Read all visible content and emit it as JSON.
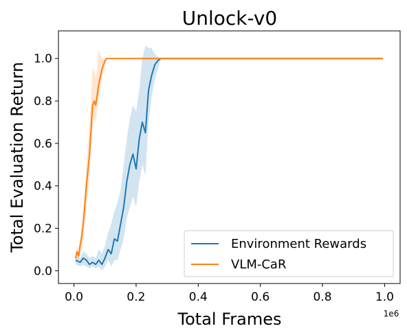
{
  "chart_data": {
    "type": "line",
    "title": "Unlock-v0",
    "xlabel": "Total Frames",
    "ylabel": "Total Evaluation Return",
    "x_offset_label": "1e6",
    "xlim": [
      -0.05,
      1.05
    ],
    "ylim": [
      -0.06,
      1.13
    ],
    "x_ticks": [
      0.0,
      0.2,
      0.4,
      0.6,
      0.8,
      1.0
    ],
    "x_tick_labels": [
      "0.0",
      "0.2",
      "0.4",
      "0.6",
      "0.8",
      "1.0"
    ],
    "y_ticks": [
      0.0,
      0.2,
      0.4,
      0.6,
      0.8,
      1.0
    ],
    "y_tick_labels": [
      "0.0",
      "0.2",
      "0.4",
      "0.6",
      "0.8",
      "1.0"
    ],
    "grid": false,
    "legend_position": "lower-right",
    "series": [
      {
        "name": "Environment Rewards",
        "color": "#1f77b4",
        "band_color": "#1f77b4",
        "x": [
          0.005,
          0.02,
          0.03,
          0.04,
          0.05,
          0.06,
          0.07,
          0.08,
          0.09,
          0.1,
          0.11,
          0.12,
          0.13,
          0.14,
          0.15,
          0.16,
          0.17,
          0.18,
          0.19,
          0.2,
          0.21,
          0.22,
          0.23,
          0.24,
          0.25,
          0.26,
          0.27,
          0.28,
          0.4,
          0.6,
          0.8,
          0.995
        ],
        "y": [
          0.05,
          0.04,
          0.06,
          0.05,
          0.03,
          0.04,
          0.03,
          0.05,
          0.03,
          0.06,
          0.1,
          0.08,
          0.15,
          0.14,
          0.22,
          0.3,
          0.42,
          0.5,
          0.55,
          0.48,
          0.62,
          0.7,
          0.65,
          0.85,
          0.92,
          0.97,
          0.99,
          1.0,
          1.0,
          1.0,
          1.0,
          1.0
        ],
        "lower": [
          0.03,
          0.02,
          0.03,
          0.02,
          0.01,
          0.02,
          0.01,
          0.02,
          0.0,
          0.02,
          0.05,
          0.02,
          0.05,
          0.05,
          0.1,
          0.15,
          0.25,
          0.3,
          0.35,
          0.3,
          0.42,
          0.5,
          0.45,
          0.7,
          0.82,
          0.9,
          0.95,
          1.0,
          1.0,
          1.0,
          1.0,
          1.0
        ],
        "upper": [
          0.07,
          0.06,
          0.09,
          0.08,
          0.06,
          0.07,
          0.06,
          0.1,
          0.08,
          0.12,
          0.18,
          0.22,
          0.28,
          0.32,
          0.38,
          0.5,
          0.62,
          0.72,
          0.78,
          0.75,
          0.85,
          1.0,
          1.06,
          1.05,
          1.05,
          1.02,
          1.01,
          1.0,
          1.0,
          1.0,
          1.0,
          1.0
        ]
      },
      {
        "name": "VLM-CaR",
        "color": "#ff7f0e",
        "band_color": "#ff7f0e",
        "x": [
          0.005,
          0.01,
          0.015,
          0.02,
          0.025,
          0.03,
          0.04,
          0.05,
          0.06,
          0.065,
          0.07,
          0.08,
          0.09,
          0.1,
          0.105,
          0.2,
          0.4,
          0.6,
          0.8,
          0.995
        ],
        "y": [
          0.06,
          0.09,
          0.07,
          0.12,
          0.16,
          0.22,
          0.4,
          0.55,
          0.78,
          0.8,
          0.78,
          0.88,
          0.95,
          0.99,
          1.0,
          1.0,
          1.0,
          1.0,
          1.0,
          1.0
        ],
        "lower": [
          0.04,
          0.06,
          0.05,
          0.08,
          0.1,
          0.15,
          0.3,
          0.45,
          0.68,
          0.72,
          0.7,
          0.82,
          0.9,
          0.97,
          1.0,
          1.0,
          1.0,
          1.0,
          1.0,
          1.0
        ],
        "upper": [
          0.08,
          0.12,
          0.1,
          0.16,
          0.22,
          0.3,
          0.5,
          0.7,
          0.95,
          0.95,
          0.9,
          1.04,
          1.0,
          1.0,
          1.0,
          1.0,
          1.0,
          1.0,
          1.0,
          1.0
        ]
      }
    ]
  }
}
